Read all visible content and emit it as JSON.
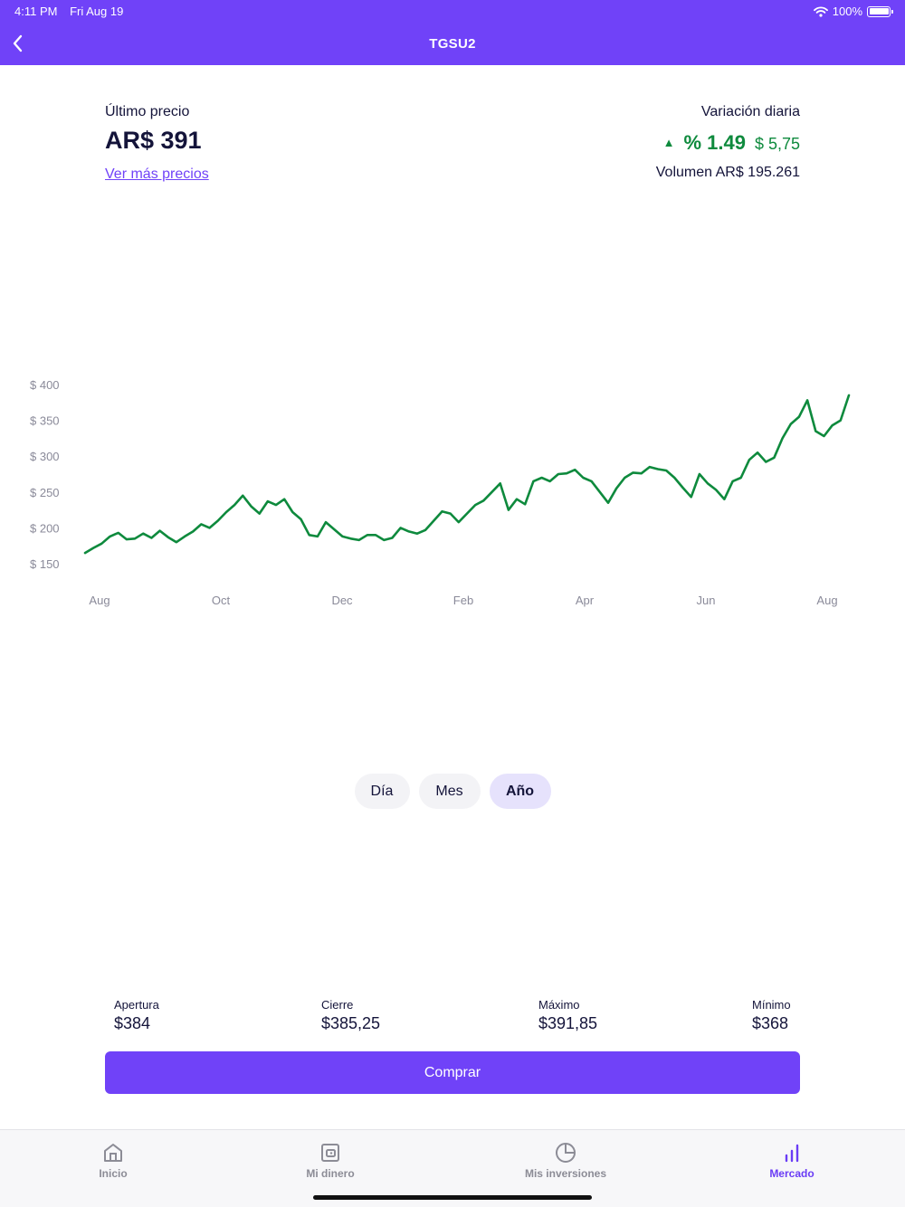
{
  "status_bar": {
    "time": "4:11 PM",
    "date": "Fri Aug 19",
    "battery": "100%"
  },
  "nav": {
    "title": "TGSU2",
    "back_icon": "chevron-left-icon"
  },
  "price": {
    "label": "Último precio",
    "value": "AR$ 391",
    "link": "Ver más precios"
  },
  "variation": {
    "label": "Variación diaria",
    "percent": "% 1.49",
    "amount": "$ 5,75",
    "volume": "Volumen AR$ 195.261",
    "direction_icon": "triangle-up-icon"
  },
  "colors": {
    "brand": "#7042f8",
    "positive": "#0e8a3d",
    "active_tab_bg": "#e6e2fc"
  },
  "chart_data": {
    "type": "line",
    "series": [
      {
        "values": [
          165,
          172,
          178,
          188,
          193,
          184,
          185,
          192,
          186,
          196,
          187,
          180,
          188,
          195,
          205,
          200,
          210,
          222,
          232,
          245,
          230,
          220,
          237,
          232,
          240,
          222,
          212,
          190,
          188,
          208,
          198,
          188,
          185,
          183,
          190,
          190,
          183,
          186,
          200,
          195,
          192,
          197,
          210,
          223,
          220,
          208,
          220,
          232,
          238,
          250,
          262,
          225,
          240,
          233,
          265,
          270,
          265,
          275,
          276,
          281,
          270,
          265,
          250,
          235,
          255,
          270,
          277,
          276,
          285,
          282,
          280,
          270,
          256,
          243,
          275,
          262,
          253,
          240,
          265,
          270,
          295,
          305,
          292,
          298,
          325,
          345,
          355,
          378,
          335,
          328,
          343,
          350,
          385
        ],
        "color": "#0e8a3d"
      }
    ],
    "x_ticks": [
      "Aug",
      "Oct",
      "Dec",
      "Feb",
      "Apr",
      "Jun",
      "Aug"
    ],
    "y_ticks": [
      "$ 150",
      "$ 200",
      "$ 250",
      "$ 300",
      "$ 350",
      "$ 400"
    ],
    "ylim": [
      150,
      400
    ],
    "grid": false
  },
  "period_tabs": {
    "day": "Día",
    "month": "Mes",
    "year": "Año",
    "active": "year"
  },
  "stats": {
    "open": {
      "label": "Apertura",
      "value": "$384"
    },
    "close": {
      "label": "Cierre",
      "value": "$385,25"
    },
    "max": {
      "label": "Máximo",
      "value": "$391,85"
    },
    "min": {
      "label": "Mínimo",
      "value": "$368"
    }
  },
  "buy_button": "Comprar",
  "tabbar": {
    "items": [
      {
        "label": "Inicio",
        "icon": "home-icon"
      },
      {
        "label": "Mi dinero",
        "icon": "wallet-icon"
      },
      {
        "label": "Mis inversiones",
        "icon": "pie-chart-icon"
      },
      {
        "label": "Mercado",
        "icon": "bar-chart-icon"
      }
    ],
    "active": "Mercado"
  }
}
